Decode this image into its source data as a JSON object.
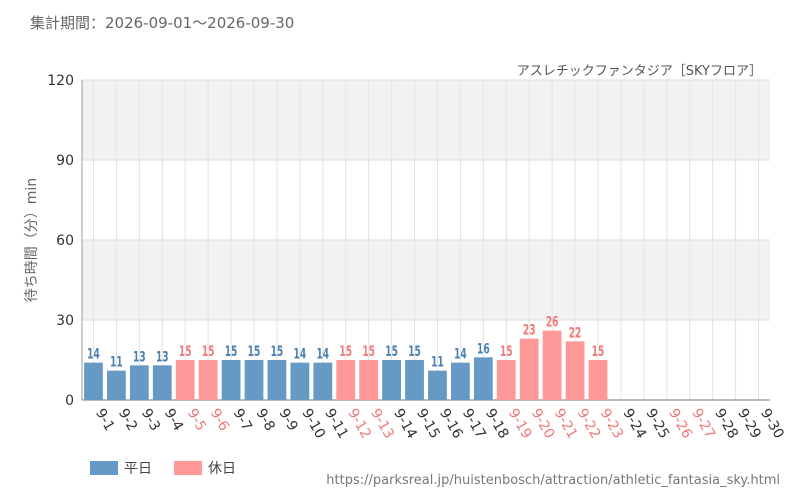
{
  "header": {
    "period": "集計期間：2026-09-01～2026-09-30",
    "attraction": "アスレチックファンタジア［SKYフロア］"
  },
  "legend": {
    "weekday_label": "平日",
    "holiday_label": "休日"
  },
  "source": "https://parksreal.jp/huistenbosch/attraction/athletic_fantasia_sky.html",
  "colors": {
    "weekday": "#6699c4",
    "holiday": "#ff9999",
    "weekday_text": "#4a7fb0",
    "holiday_text": "#f07878"
  },
  "chart_data": {
    "type": "bar",
    "ylabel": "待ち時間（分）min",
    "ylim": [
      0,
      120
    ],
    "yticks": [
      0,
      30,
      60,
      90,
      120
    ],
    "categories": [
      "9-1",
      "9-2",
      "9-3",
      "9-4",
      "9-5",
      "9-6",
      "9-7",
      "9-8",
      "9-9",
      "9-10",
      "9-11",
      "9-12",
      "9-13",
      "9-14",
      "9-15",
      "9-16",
      "9-17",
      "9-18",
      "9-19",
      "9-20",
      "9-21",
      "9-22",
      "9-23",
      "9-24",
      "9-25",
      "9-26",
      "9-27",
      "9-28",
      "9-29",
      "9-30"
    ],
    "values": [
      14,
      11,
      13,
      13,
      15,
      15,
      15,
      15,
      15,
      14,
      14,
      15,
      15,
      15,
      15,
      11,
      14,
      16,
      15,
      23,
      26,
      22,
      15,
      null,
      null,
      null,
      null,
      null,
      null,
      null
    ],
    "day_type": [
      "weekday",
      "weekday",
      "weekday",
      "weekday",
      "holiday",
      "holiday",
      "weekday",
      "weekday",
      "weekday",
      "weekday",
      "weekday",
      "holiday",
      "holiday",
      "weekday",
      "weekday",
      "weekday",
      "weekday",
      "weekday",
      "holiday",
      "holiday",
      "holiday",
      "holiday",
      "holiday",
      "weekday",
      "weekday",
      "holiday",
      "holiday",
      "weekday",
      "weekday",
      "weekday"
    ]
  }
}
